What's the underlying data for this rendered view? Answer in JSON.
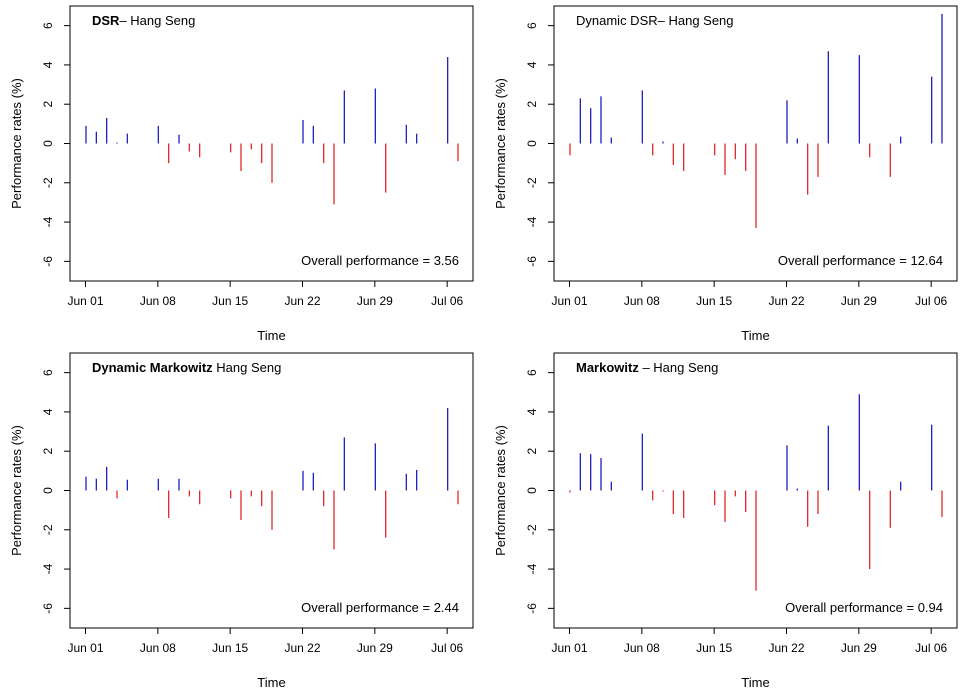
{
  "chart_data": [
    {
      "type": "bar",
      "title": "DSR– Hang Seng",
      "title_bold_prefix": "DSR",
      "xlabel": "Time",
      "ylabel": "Performance rates (%)",
      "ylim": [
        -7,
        7
      ],
      "yticks": [
        -6,
        -4,
        -2,
        0,
        2,
        4,
        6
      ],
      "x_range": [
        -1.5,
        37.5
      ],
      "xticks": [
        {
          "label": "Jun 01",
          "day": 0
        },
        {
          "label": "Jun 08",
          "day": 7
        },
        {
          "label": "Jun 15",
          "day": 14
        },
        {
          "label": "Jun 22",
          "day": 21
        },
        {
          "label": "Jun 29",
          "day": 28
        },
        {
          "label": "Jul 06",
          "day": 35
        }
      ],
      "positive_color": "#1f1fbf",
      "negative_color": "#e0282a",
      "points": [
        {
          "day": 0,
          "value": 0.9
        },
        {
          "day": 1,
          "value": 0.6
        },
        {
          "day": 2,
          "value": 1.3
        },
        {
          "day": 3,
          "value": 0.05
        },
        {
          "day": 4,
          "value": 0.5
        },
        {
          "day": 7,
          "value": 0.9
        },
        {
          "day": 8,
          "value": -1.0
        },
        {
          "day": 9,
          "value": 0.45
        },
        {
          "day": 10,
          "value": -0.4
        },
        {
          "day": 11,
          "value": -0.7
        },
        {
          "day": 14,
          "value": -0.45
        },
        {
          "day": 15,
          "value": -1.4
        },
        {
          "day": 16,
          "value": -0.3
        },
        {
          "day": 17,
          "value": -1.0
        },
        {
          "day": 18,
          "value": -2.0
        },
        {
          "day": 21,
          "value": 1.2
        },
        {
          "day": 22,
          "value": 0.9
        },
        {
          "day": 23,
          "value": -1.0
        },
        {
          "day": 24,
          "value": -3.1
        },
        {
          "day": 25,
          "value": 2.7
        },
        {
          "day": 28,
          "value": 2.8
        },
        {
          "day": 29,
          "value": -2.5
        },
        {
          "day": 31,
          "value": 0.95
        },
        {
          "day": 32,
          "value": 0.5
        },
        {
          "day": 35,
          "value": 4.4
        },
        {
          "day": 36,
          "value": -0.9
        }
      ],
      "annotation": "Overall performance = 3.56"
    },
    {
      "type": "bar",
      "title": "Dynamic DSR– Hang Seng",
      "title_bold_prefix": "",
      "xlabel": "Time",
      "ylabel": "Performance rates (%)",
      "ylim": [
        -7,
        7
      ],
      "yticks": [
        -6,
        -4,
        -2,
        0,
        2,
        4,
        6
      ],
      "x_range": [
        -1.5,
        37.5
      ],
      "xticks": [
        {
          "label": "Jun 01",
          "day": 0
        },
        {
          "label": "Jun 08",
          "day": 7
        },
        {
          "label": "Jun 15",
          "day": 14
        },
        {
          "label": "Jun 22",
          "day": 21
        },
        {
          "label": "Jun 29",
          "day": 28
        },
        {
          "label": "Jul 06",
          "day": 35
        }
      ],
      "positive_color": "#1f1fbf",
      "negative_color": "#e0282a",
      "points": [
        {
          "day": 0,
          "value": -0.6
        },
        {
          "day": 1,
          "value": 2.3
        },
        {
          "day": 2,
          "value": 1.8
        },
        {
          "day": 3,
          "value": 2.4
        },
        {
          "day": 4,
          "value": 0.3
        },
        {
          "day": 7,
          "value": 2.7
        },
        {
          "day": 8,
          "value": -0.6
        },
        {
          "day": 9,
          "value": 0.1
        },
        {
          "day": 10,
          "value": -1.1
        },
        {
          "day": 11,
          "value": -1.4
        },
        {
          "day": 14,
          "value": -0.6
        },
        {
          "day": 15,
          "value": -1.6
        },
        {
          "day": 16,
          "value": -0.8
        },
        {
          "day": 17,
          "value": -1.4
        },
        {
          "day": 18,
          "value": -4.3
        },
        {
          "day": 21,
          "value": 2.2
        },
        {
          "day": 22,
          "value": 0.25
        },
        {
          "day": 23,
          "value": -2.6
        },
        {
          "day": 24,
          "value": -1.7
        },
        {
          "day": 25,
          "value": 4.7
        },
        {
          "day": 28,
          "value": 4.5
        },
        {
          "day": 29,
          "value": -0.7
        },
        {
          "day": 31,
          "value": -1.7
        },
        {
          "day": 32,
          "value": 0.35
        },
        {
          "day": 35,
          "value": 3.4
        },
        {
          "day": 36,
          "value": 6.6
        }
      ],
      "annotation": "Overall performance = 12.64"
    },
    {
      "type": "bar",
      "title": "Dynamic Markowitz  Hang Seng",
      "title_bold_prefix": "Dynamic Markowitz",
      "xlabel": "Time",
      "ylabel": "Performance rates (%)",
      "ylim": [
        -7,
        7
      ],
      "yticks": [
        -6,
        -4,
        -2,
        0,
        2,
        4,
        6
      ],
      "x_range": [
        -1.5,
        37.5
      ],
      "xticks": [
        {
          "label": "Jun 01",
          "day": 0
        },
        {
          "label": "Jun 08",
          "day": 7
        },
        {
          "label": "Jun 15",
          "day": 14
        },
        {
          "label": "Jun 22",
          "day": 21
        },
        {
          "label": "Jun 29",
          "day": 28
        },
        {
          "label": "Jul 06",
          "day": 35
        }
      ],
      "positive_color": "#1f1fbf",
      "negative_color": "#e0282a",
      "points": [
        {
          "day": 0,
          "value": 0.7
        },
        {
          "day": 1,
          "value": 0.6
        },
        {
          "day": 2,
          "value": 1.2
        },
        {
          "day": 3,
          "value": -0.4
        },
        {
          "day": 4,
          "value": 0.55
        },
        {
          "day": 7,
          "value": 0.6
        },
        {
          "day": 8,
          "value": -1.4
        },
        {
          "day": 9,
          "value": 0.6
        },
        {
          "day": 10,
          "value": -0.3
        },
        {
          "day": 11,
          "value": -0.7
        },
        {
          "day": 14,
          "value": -0.4
        },
        {
          "day": 15,
          "value": -1.5
        },
        {
          "day": 16,
          "value": -0.3
        },
        {
          "day": 17,
          "value": -0.8
        },
        {
          "day": 18,
          "value": -2.0
        },
        {
          "day": 21,
          "value": 1.0
        },
        {
          "day": 22,
          "value": 0.9
        },
        {
          "day": 23,
          "value": -0.8
        },
        {
          "day": 24,
          "value": -3.0
        },
        {
          "day": 25,
          "value": 2.7
        },
        {
          "day": 28,
          "value": 2.4
        },
        {
          "day": 29,
          "value": -2.4
        },
        {
          "day": 31,
          "value": 0.85
        },
        {
          "day": 32,
          "value": 1.05
        },
        {
          "day": 35,
          "value": 4.2
        },
        {
          "day": 36,
          "value": -0.7
        }
      ],
      "annotation": "Overall performance = 2.44"
    },
    {
      "type": "bar",
      "title": "Markowitz – Hang Seng",
      "title_bold_prefix": "Markowitz",
      "xlabel": "Time",
      "ylabel": "Performance rates (%)",
      "ylim": [
        -7,
        7
      ],
      "yticks": [
        -6,
        -4,
        -2,
        0,
        2,
        4,
        6
      ],
      "x_range": [
        -1.5,
        37.5
      ],
      "xticks": [
        {
          "label": "Jun 01",
          "day": 0
        },
        {
          "label": "Jun 08",
          "day": 7
        },
        {
          "label": "Jun 15",
          "day": 14
        },
        {
          "label": "Jun 22",
          "day": 21
        },
        {
          "label": "Jun 29",
          "day": 28
        },
        {
          "label": "Jul 06",
          "day": 35
        }
      ],
      "positive_color": "#1f1fbf",
      "negative_color": "#e0282a",
      "points": [
        {
          "day": 0,
          "value": -0.1
        },
        {
          "day": 1,
          "value": 1.9
        },
        {
          "day": 2,
          "value": 1.85
        },
        {
          "day": 3,
          "value": 1.65
        },
        {
          "day": 4,
          "value": 0.45
        },
        {
          "day": 7,
          "value": 2.9
        },
        {
          "day": 8,
          "value": -0.5
        },
        {
          "day": 9,
          "value": -0.05
        },
        {
          "day": 10,
          "value": -1.2
        },
        {
          "day": 11,
          "value": -1.4
        },
        {
          "day": 14,
          "value": -0.75
        },
        {
          "day": 15,
          "value": -1.6
        },
        {
          "day": 16,
          "value": -0.3
        },
        {
          "day": 17,
          "value": -1.1
        },
        {
          "day": 18,
          "value": -5.1
        },
        {
          "day": 21,
          "value": 2.3
        },
        {
          "day": 22,
          "value": 0.1
        },
        {
          "day": 23,
          "value": -1.85
        },
        {
          "day": 24,
          "value": -1.2
        },
        {
          "day": 25,
          "value": 3.3
        },
        {
          "day": 28,
          "value": 4.9
        },
        {
          "day": 29,
          "value": -4.0
        },
        {
          "day": 31,
          "value": -1.9
        },
        {
          "day": 32,
          "value": 0.45
        },
        {
          "day": 35,
          "value": 3.35
        },
        {
          "day": 36,
          "value": -1.35
        }
      ],
      "annotation": "Overall performance = 0.94"
    }
  ]
}
